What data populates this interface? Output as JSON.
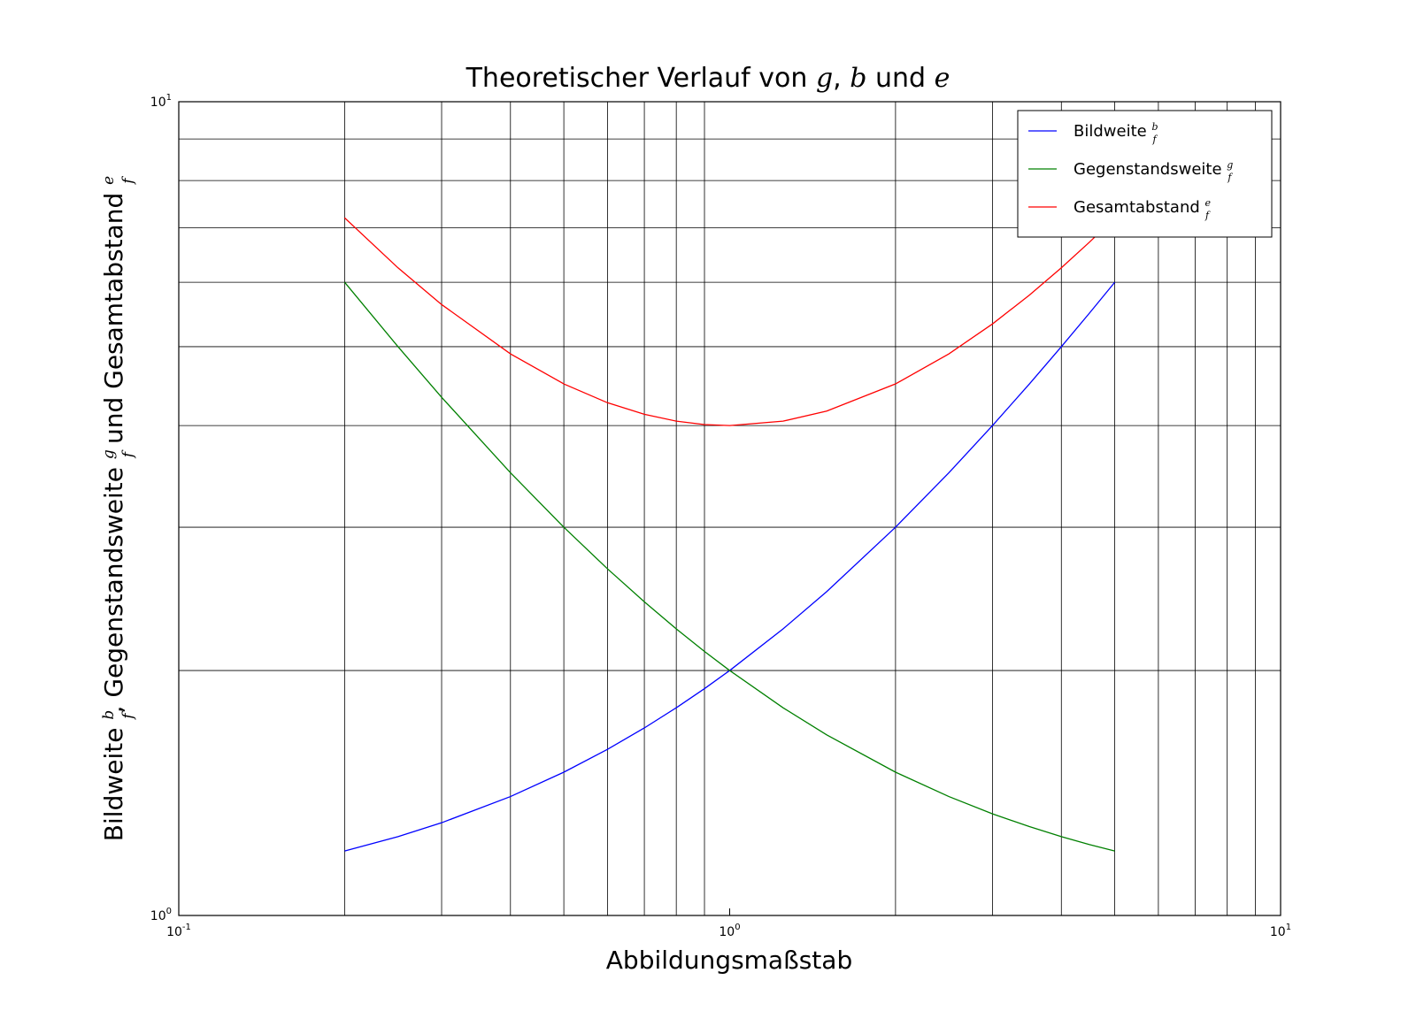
{
  "chart_data": {
    "type": "line",
    "title": {
      "prefix": "Theoretischer Verlauf von ",
      "var1": "g",
      "sep1": ", ",
      "var2": "b",
      "sep2": " und ",
      "var3": "e"
    },
    "xlabel": "Abbildungsmaßstab",
    "ylabel": {
      "part1": "Bildweite ",
      "frac1_num": "b",
      "frac1_den": "f",
      "part2": ", Gegenstandsweite ",
      "frac2_num": "g",
      "frac2_den": "f",
      "part3": " und Gesamtabstand ",
      "frac3_num": "e",
      "frac3_den": "f"
    },
    "x_scale": "log",
    "y_scale": "log",
    "xlim": [
      0.1,
      10
    ],
    "ylim": [
      1,
      10
    ],
    "grid": true,
    "x_ticks": [
      {
        "base": "10",
        "exp": "-1",
        "value": 0.1
      },
      {
        "base": "10",
        "exp": "0",
        "value": 1
      },
      {
        "base": "10",
        "exp": "1",
        "value": 10
      }
    ],
    "y_ticks": [
      {
        "base": "10",
        "exp": "0",
        "value": 1
      },
      {
        "base": "10",
        "exp": "1",
        "value": 10
      }
    ],
    "x_minor_grid": [
      0.2,
      0.3,
      0.4,
      0.5,
      0.6,
      0.7,
      0.8,
      0.9,
      2,
      3,
      4,
      5,
      6,
      7,
      8,
      9
    ],
    "y_minor_grid": [
      2,
      3,
      4,
      5,
      6,
      7,
      8,
      9
    ],
    "legend_position": "top-right",
    "series": [
      {
        "name": "Bildweite",
        "frac_num": "b",
        "frac_den": "f",
        "color": "#0000ff",
        "x": [
          0.2,
          0.25,
          0.3,
          0.4,
          0.5,
          0.6,
          0.7,
          0.8,
          0.9,
          1.0,
          1.25,
          1.5,
          2.0,
          2.5,
          3.0,
          3.5,
          4.0,
          4.5,
          5.0
        ],
        "y": [
          1.2,
          1.25,
          1.3,
          1.4,
          1.5,
          1.6,
          1.7,
          1.8,
          1.9,
          2.0,
          2.25,
          2.5,
          3.0,
          3.5,
          4.0,
          4.5,
          5.0,
          5.5,
          6.0
        ]
      },
      {
        "name": "Gegenstandsweite",
        "frac_num": "g",
        "frac_den": "f",
        "color": "#008000",
        "x": [
          0.2,
          0.25,
          0.3,
          0.4,
          0.5,
          0.6,
          0.7,
          0.8,
          0.9,
          1.0,
          1.25,
          1.5,
          2.0,
          2.5,
          3.0,
          3.5,
          4.0,
          4.5,
          5.0
        ],
        "y": [
          6.0,
          5.0,
          4.333,
          3.5,
          3.0,
          2.667,
          2.429,
          2.25,
          2.111,
          2.0,
          1.8,
          1.667,
          1.5,
          1.4,
          1.333,
          1.286,
          1.25,
          1.222,
          1.2
        ]
      },
      {
        "name": "Gesamtabstand",
        "frac_num": "e",
        "frac_den": "f",
        "color": "#ff0000",
        "x": [
          0.2,
          0.25,
          0.3,
          0.4,
          0.5,
          0.6,
          0.7,
          0.8,
          0.9,
          1.0,
          1.25,
          1.5,
          2.0,
          2.5,
          3.0,
          3.5,
          4.0,
          4.5,
          5.0
        ],
        "y": [
          7.2,
          6.25,
          5.633,
          4.9,
          4.5,
          4.267,
          4.129,
          4.05,
          4.011,
          4.0,
          4.05,
          4.167,
          4.5,
          4.9,
          5.333,
          5.786,
          6.25,
          6.722,
          7.2
        ]
      }
    ]
  }
}
